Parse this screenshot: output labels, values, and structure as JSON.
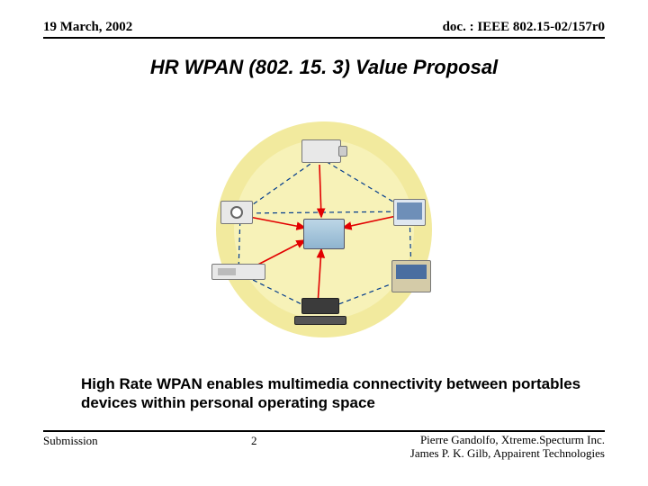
{
  "header": {
    "date": "19 March, 2002",
    "doc": "doc. : IEEE 802.15-02/157r0"
  },
  "title": "HR WPAN (802. 15. 3) Value Proposal",
  "diagram": {
    "bg_outer": "#f2ea9e",
    "bg_inner": "#f7f2b8",
    "outer_r": 120,
    "inner_r": 100,
    "line_color": "#003a8c",
    "arrow_color": "#e20000",
    "device_labels": {
      "camcorder": "camcorder",
      "camera": "camera",
      "vcr": "vcr-deck",
      "display": "display-panel",
      "tv": "monitor",
      "laptop": "laptop"
    }
  },
  "caption": "High Rate WPAN enables multimedia connectivity between portables devices within personal operating space",
  "footer": {
    "left": "Submission",
    "page": "2",
    "right1": "Pierre Gandolfo, Xtreme.Specturm Inc.",
    "right2": "James P. K. Gilb, Appairent Technologies"
  }
}
